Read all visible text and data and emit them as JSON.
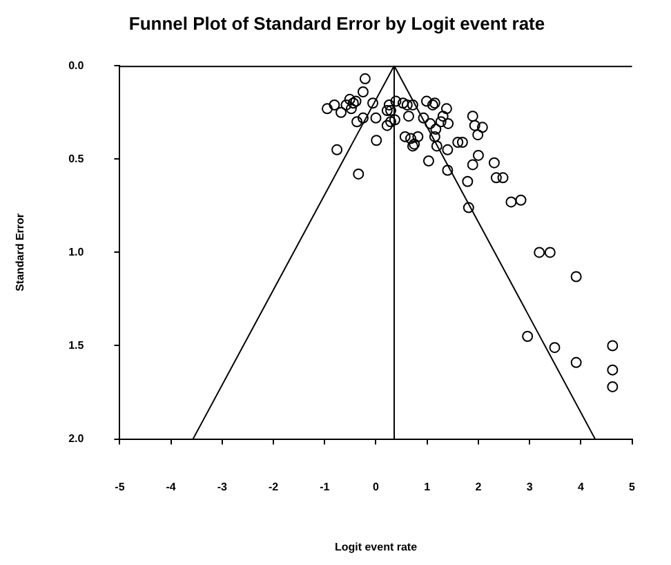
{
  "chart_data": {
    "type": "scatter",
    "title": "Funnel Plot of Standard Error by Logit event rate",
    "xlabel": "Logit event rate",
    "ylabel": "Standard Error",
    "xlim": [
      -5,
      5
    ],
    "xticks": [
      -5,
      -4,
      -3,
      -2,
      -1,
      0,
      1,
      2,
      3,
      4,
      5
    ],
    "ylim": [
      2.0,
      0.0
    ],
    "yticks": [
      {
        "value": 0,
        "label": "0.0"
      },
      {
        "value": 0.5,
        "label": "0.5"
      },
      {
        "value": 1,
        "label": "1.0"
      },
      {
        "value": 1.5,
        "label": "1.5"
      },
      {
        "value": 2,
        "label": "2.0"
      }
    ],
    "grid": false,
    "marker": "circle",
    "ref_lines": [
      {
        "axis": "x",
        "value": 0.357,
        "color": "#000000"
      }
    ],
    "series": [
      {
        "color": "#000000",
        "x": [
          -0.21,
          -0.25,
          -0.95,
          -0.81,
          -0.68,
          -0.58,
          -0.51,
          -0.44,
          -0.39,
          -0.48,
          -0.06,
          -0.37,
          -0.25,
          0.0,
          0.26,
          0.22,
          0.29,
          0.39,
          0.22,
          0.29,
          0.37,
          0.01,
          -0.76,
          -0.34,
          0.53,
          0.61,
          0.72,
          0.99,
          1.15,
          1.11,
          1.38,
          0.64,
          0.93,
          1.06,
          1.17,
          1.31,
          1.27,
          1.41,
          1.89,
          1.93,
          2.08,
          1.99,
          0.57,
          0.68,
          0.82,
          0.72,
          0.75,
          1.15,
          1.19,
          1.4,
          1.6,
          1.69,
          2.0,
          1.03,
          1.4,
          1.89,
          2.31,
          1.79,
          1.81,
          2.35,
          2.48,
          2.64,
          2.83,
          3.19,
          3.4,
          3.91,
          2.96,
          3.49,
          3.91,
          4.62,
          4.62,
          4.62
        ],
        "values": [
          0.07,
          0.14,
          0.23,
          0.21,
          0.25,
          0.21,
          0.18,
          0.2,
          0.19,
          0.23,
          0.2,
          0.3,
          0.28,
          0.28,
          0.21,
          0.24,
          0.24,
          0.19,
          0.32,
          0.3,
          0.29,
          0.4,
          0.45,
          0.58,
          0.2,
          0.21,
          0.21,
          0.19,
          0.2,
          0.21,
          0.23,
          0.27,
          0.28,
          0.31,
          0.34,
          0.27,
          0.3,
          0.31,
          0.27,
          0.32,
          0.33,
          0.37,
          0.38,
          0.39,
          0.38,
          0.43,
          0.42,
          0.38,
          0.43,
          0.45,
          0.41,
          0.41,
          0.48,
          0.51,
          0.56,
          0.53,
          0.52,
          0.62,
          0.76,
          0.6,
          0.6,
          0.73,
          0.72,
          1.0,
          1.0,
          1.13,
          1.45,
          1.51,
          1.59,
          1.5,
          1.63,
          1.72
        ]
      },
      {
        "type": "line",
        "color": "#000000",
        "marker": "none",
        "x": [
          -3.57,
          0.357,
          4.28
        ],
        "values": [
          2.0,
          0.0,
          2.0
        ]
      }
    ]
  }
}
